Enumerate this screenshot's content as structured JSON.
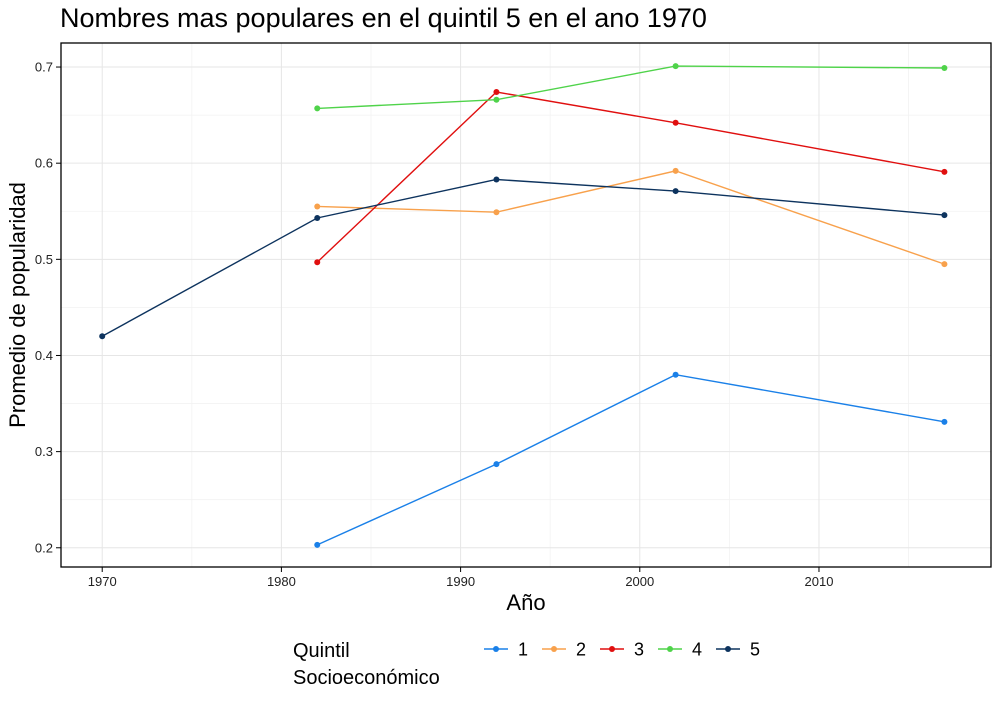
{
  "chart_data": {
    "type": "line",
    "title": "Nombres mas populares en el quintil 5 en el ano 1970",
    "xlabel": "Año",
    "ylabel": "Promedio de popularidad",
    "xlim": [
      1967.7,
      2019.6
    ],
    "ylim": [
      0.18,
      0.725
    ],
    "x_ticks": [
      1970,
      1980,
      1990,
      2000,
      2010
    ],
    "y_ticks": [
      0.2,
      0.3,
      0.4,
      0.5,
      0.6,
      0.7
    ],
    "x_tick_labels": [
      "1970",
      "1980",
      "1990",
      "2000",
      "2010"
    ],
    "y_tick_labels": [
      "0.2",
      "0.3",
      "0.4",
      "0.5",
      "0.6",
      "0.7"
    ],
    "grid": true,
    "legend": {
      "title_line1": "Quintil",
      "title_line2": "Socioeconómico",
      "position": "bottom"
    },
    "series": [
      {
        "name": "1",
        "color": "#1a80e8",
        "points": [
          [
            1982,
            0.203
          ],
          [
            1992,
            0.287
          ],
          [
            2002,
            0.38
          ],
          [
            2017,
            0.331
          ]
        ]
      },
      {
        "name": "2",
        "color": "#f8a14c",
        "points": [
          [
            1982,
            0.555
          ],
          [
            1992,
            0.549
          ],
          [
            2002,
            0.592
          ],
          [
            2017,
            0.495
          ]
        ]
      },
      {
        "name": "3",
        "color": "#e00f0f",
        "points": [
          [
            1982,
            0.497
          ],
          [
            1992,
            0.674
          ],
          [
            2002,
            0.642
          ],
          [
            2017,
            0.591
          ]
        ]
      },
      {
        "name": "4",
        "color": "#4fd34a",
        "points": [
          [
            1982,
            0.657
          ],
          [
            1992,
            0.666
          ],
          [
            2002,
            0.701
          ],
          [
            2017,
            0.699
          ]
        ]
      },
      {
        "name": "5",
        "color": "#0d335e",
        "points": [
          [
            1970,
            0.42
          ],
          [
            1982,
            0.543
          ],
          [
            1992,
            0.583
          ],
          [
            2002,
            0.571
          ],
          [
            2017,
            0.546
          ]
        ]
      }
    ]
  }
}
